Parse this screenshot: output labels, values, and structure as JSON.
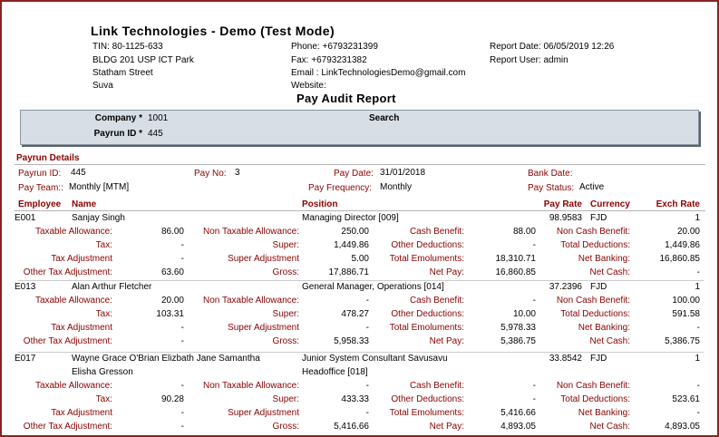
{
  "company": {
    "name": "Link Technologies - Demo (Test Mode)",
    "tin": "TIN: 80-1125-633",
    "address1": "BLDG 201 USP ICT Park",
    "address2": "Statham Street",
    "address3": "Suva",
    "phone": "Phone: +6793231399",
    "fax": "Fax: +6793231382",
    "email": "Email : LinkTechnologiesDemo@gmail.com",
    "website": "Website:",
    "report_date": "Report Date: 06/05/2019 12:26",
    "report_user": "Report User: admin"
  },
  "report_title": "Pay Audit Report",
  "search": {
    "company_label": "Company *",
    "company_value": "1001",
    "payrun_label": "Payrun ID *",
    "payrun_value": "445",
    "search_label": "Search"
  },
  "payrun": {
    "section": "Payrun Details",
    "id_label": "Payrun ID:",
    "id_value": "445",
    "payno_label": "Pay No:",
    "payno_value": "3",
    "paydate_label": "Pay Date:",
    "paydate_value": "31/01/2018",
    "bankdate_label": "Bank Date:",
    "team_label": "Pay Team::",
    "team_value": "Monthly [MTM]",
    "freq_label": "Pay Frequency:",
    "freq_value": "Monthly",
    "status_label": "Pay Status:",
    "status_value": "Active"
  },
  "columns": {
    "employee": "Employee",
    "name": "Name",
    "position": "Position",
    "payrate": "Pay Rate",
    "currency": "Currency",
    "exchrate": "Exch Rate"
  },
  "labels": {
    "taxable_allowance": "Taxable Allowance:",
    "non_taxable_allowance": "Non Taxable Allowance:",
    "cash_benefit": "Cash Benefit:",
    "non_cash_benefit": "Non Cash Benefit:",
    "tax": "Tax:",
    "super": "Super:",
    "other_deductions": "Other Deductions:",
    "total_deductions": "Total Deductions:",
    "tax_adjustment": "Tax Adjustment",
    "super_adjustment": "Super Adjustment",
    "total_emoluments": "Total Emoluments:",
    "net_banking": "Net Banking:",
    "other_tax_adjustment": "Other Tax Adjustment:",
    "gross": "Gross:",
    "net_pay": "Net Pay:",
    "net_cash": "Net Cash:"
  },
  "employees": [
    {
      "code": "E001",
      "name1": "Sanjay Singh",
      "name2": "",
      "position1": "Managing Director [009]",
      "position2": "",
      "payrate": "98.9583",
      "currency": "FJD",
      "exchrate": "1",
      "taxable_allowance": "86.00",
      "non_taxable_allowance": "250.00",
      "cash_benefit": "88.00",
      "non_cash_benefit": "20.00",
      "tax": "-",
      "super": "1,449.86",
      "other_deductions": "-",
      "total_deductions": "1,449.86",
      "tax_adjustment": "-",
      "super_adjustment": "5.00",
      "total_emoluments": "18,310.71",
      "net_banking": "16,860.85",
      "other_tax_adjustment": "63.60",
      "gross": "17,886.71",
      "net_pay": "16,860.85",
      "net_cash": "-"
    },
    {
      "code": "E013",
      "name1": "Alan Arthur Fletcher",
      "name2": "",
      "position1": "General Manager, Operations [014]",
      "position2": "",
      "payrate": "37.2396",
      "currency": "FJD",
      "exchrate": "1",
      "taxable_allowance": "20.00",
      "non_taxable_allowance": "-",
      "cash_benefit": "-",
      "non_cash_benefit": "100.00",
      "tax": "103.31",
      "super": "478.27",
      "other_deductions": "10.00",
      "total_deductions": "591.58",
      "tax_adjustment": "-",
      "super_adjustment": "-",
      "total_emoluments": "5,978.33",
      "net_banking": "-",
      "other_tax_adjustment": "-",
      "gross": "5,958.33",
      "net_pay": "5,386.75",
      "net_cash": "5,386.75"
    },
    {
      "code": "E017",
      "name1": "Wayne Grace O'Brian Elizbath Jane Samantha",
      "name2": "Elisha Gresson",
      "position1": "Junior System Consultant  Savusavu",
      "position2": "Headoffice [018]",
      "payrate": "33.8542",
      "currency": "FJD",
      "exchrate": "1",
      "taxable_allowance": "-",
      "non_taxable_allowance": "-",
      "cash_benefit": "-",
      "non_cash_benefit": "-",
      "tax": "90.28",
      "super": "433.33",
      "other_deductions": "-",
      "total_deductions": "523.61",
      "tax_adjustment": "-",
      "super_adjustment": "-",
      "total_emoluments": "5,416.66",
      "net_banking": "-",
      "other_tax_adjustment": "-",
      "gross": "5,416.66",
      "net_pay": "4,893.05",
      "net_cash": "4,893.05"
    }
  ]
}
